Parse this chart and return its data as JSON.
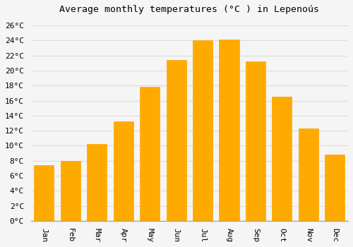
{
  "title": "Average monthly temperatures (°C ) in Lepenoús",
  "months": [
    "Jan",
    "Feb",
    "Mar",
    "Apr",
    "May",
    "Jun",
    "Jul",
    "Aug",
    "Sep",
    "Oct",
    "Nov",
    "Dec"
  ],
  "values": [
    7.4,
    8.0,
    10.2,
    13.2,
    17.8,
    21.4,
    24.0,
    24.1,
    21.2,
    16.5,
    12.3,
    8.8
  ],
  "bar_color": "#FFAA00",
  "bar_edge_color": "#FFA500",
  "background_color": "#f5f5f5",
  "grid_color": "#dddddd",
  "ylim": [
    0,
    27
  ],
  "yticks": [
    0,
    2,
    4,
    6,
    8,
    10,
    12,
    14,
    16,
    18,
    20,
    22,
    24,
    26
  ],
  "title_fontsize": 9.5,
  "tick_fontsize": 8,
  "font_family": "monospace"
}
